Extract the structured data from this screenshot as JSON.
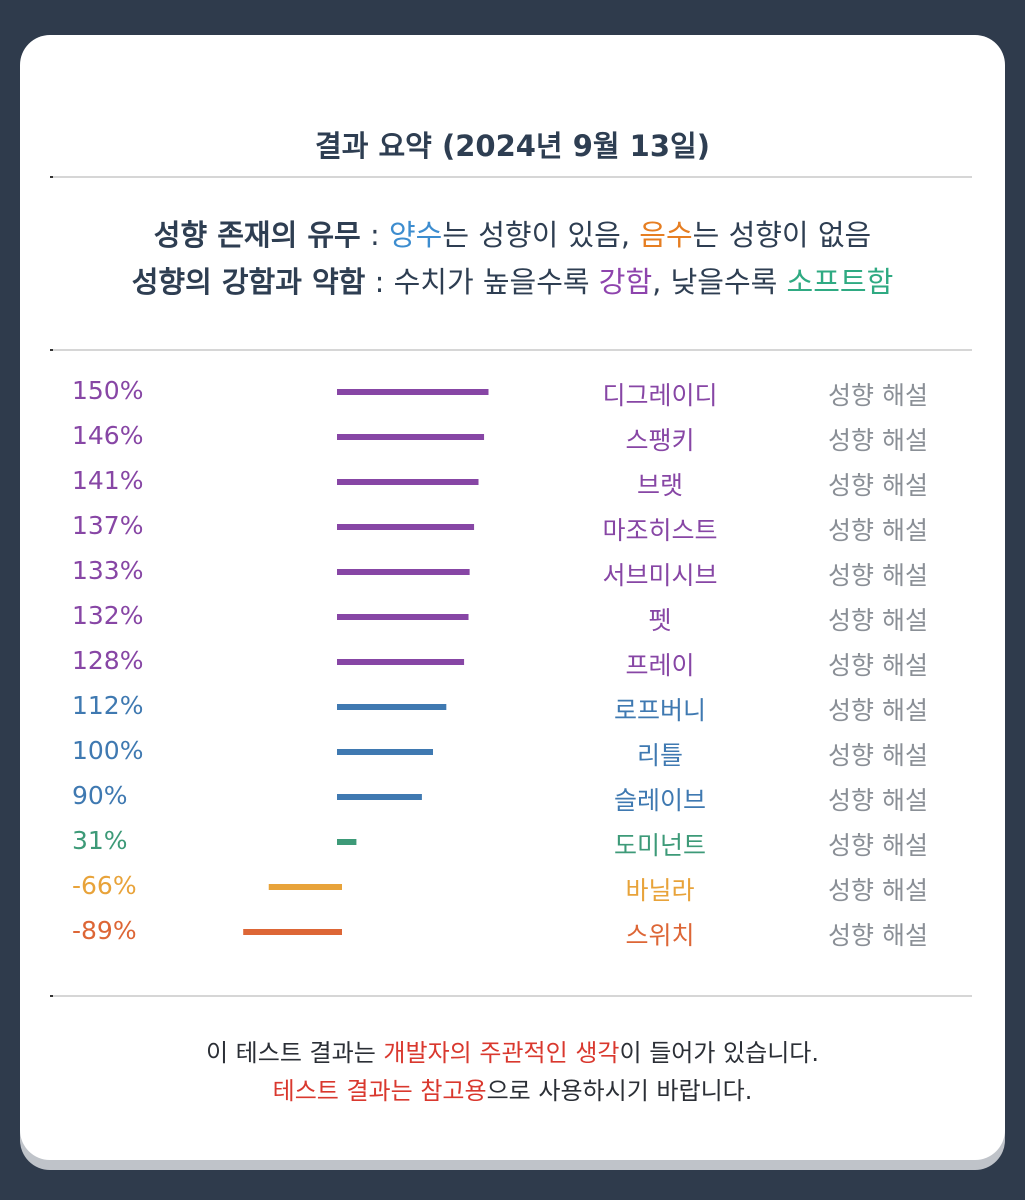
{
  "title": "결과 요약 (2024년 9월 13일)",
  "legend": {
    "line1": {
      "label": "성향 존재의 유무",
      "sep": " : ",
      "positive": "양수",
      "mid": "는 성향이 있음, ",
      "negative": "음수",
      "end": "는 성향이 없음"
    },
    "line2": {
      "label": "성향의 강함과 약함",
      "sep": " : ",
      "pre": "수치가 높을수록 ",
      "strong": "강함",
      "mid": ", 낮을수록 ",
      "soft": "소프트함"
    }
  },
  "colors": {
    "purple": "#8746a5",
    "blue": "#3f79b1",
    "green": "#3d9a78",
    "orange": "#e8a33a",
    "red_orange": "#dd6636",
    "legend_blue": "#3d8dcf",
    "legend_orange": "#e67e22",
    "legend_purple": "#8e44ad",
    "legend_green": "#2faa82",
    "footer_red": "#d9382e"
  },
  "results": [
    {
      "percent": "150%",
      "value": 150,
      "name": "디그레이디",
      "link": "성향 해설",
      "color": "purple"
    },
    {
      "percent": "146%",
      "value": 146,
      "name": "스팽키",
      "link": "성향 해설",
      "color": "purple"
    },
    {
      "percent": "141%",
      "value": 141,
      "name": "브랫",
      "link": "성향 해설",
      "color": "purple"
    },
    {
      "percent": "137%",
      "value": 137,
      "name": "마조히스트",
      "link": "성향 해설",
      "color": "purple"
    },
    {
      "percent": "133%",
      "value": 133,
      "name": "서브미시브",
      "link": "성향 해설",
      "color": "purple"
    },
    {
      "percent": "132%",
      "value": 132,
      "name": "펫",
      "link": "성향 해설",
      "color": "purple"
    },
    {
      "percent": "128%",
      "value": 128,
      "name": "프레이",
      "link": "성향 해설",
      "color": "purple"
    },
    {
      "percent": "112%",
      "value": 112,
      "name": "로프버니",
      "link": "성향 해설",
      "color": "blue"
    },
    {
      "percent": "100%",
      "value": 100,
      "name": "리틀",
      "link": "성향 해설",
      "color": "blue"
    },
    {
      "percent": "90%",
      "value": 90,
      "name": "슬레이브",
      "link": "성향 해설",
      "color": "blue"
    },
    {
      "percent": "31%",
      "value": 31,
      "name": "도미넌트",
      "link": "성향 해설",
      "color": "green"
    },
    {
      "percent": "-66%",
      "value": -66,
      "name": "바닐라",
      "link": "성향 해설",
      "color": "orange"
    },
    {
      "percent": "-89%",
      "value": -89,
      "name": "스위치",
      "link": "성향 해설",
      "color": "red_orange"
    }
  ],
  "footer": {
    "line1": {
      "pre": "이 테스트 결과는 ",
      "highlight": "개발자의 주관적인 생각",
      "post": "이 들어가 있습니다."
    },
    "line2": {
      "highlight": "테스트 결과는 참고용",
      "post": "으로 사용하시기 바랍니다."
    }
  }
}
